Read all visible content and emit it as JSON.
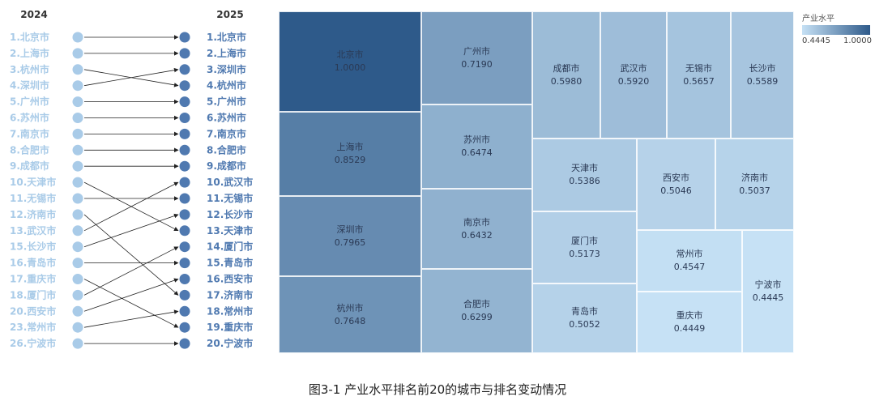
{
  "chart_data": [
    {
      "type": "slope",
      "left_label": "2024",
      "right_label": "2025",
      "left_items": [
        "1.北京市",
        "2.上海市",
        "3.杭州市",
        "4.深圳市",
        "5.广州市",
        "6.苏州市",
        "7.南京市",
        "8.合肥市",
        "9.成都市",
        "10.天津市",
        "11.无锡市",
        "12.济南市",
        "13.武汉市",
        "15.长沙市",
        "16.青岛市",
        "17.重庆市",
        "18.厦门市",
        "20.西安市",
        "23.常州市",
        "26.宁波市"
      ],
      "right_items": [
        "1.北京市",
        "2.上海市",
        "3.深圳市",
        "4.杭州市",
        "5.广州市",
        "6.苏州市",
        "7.南京市",
        "8.合肥市",
        "9.成都市",
        "10.武汉市",
        "11.无锡市",
        "12.长沙市",
        "13.天津市",
        "14.厦门市",
        "15.青岛市",
        "16.西安市",
        "17.济南市",
        "18.常州市",
        "19.重庆市",
        "20.宁波市"
      ],
      "links": [
        [
          0,
          0
        ],
        [
          1,
          1
        ],
        [
          2,
          3
        ],
        [
          3,
          2
        ],
        [
          4,
          4
        ],
        [
          5,
          5
        ],
        [
          6,
          6
        ],
        [
          7,
          7
        ],
        [
          8,
          8
        ],
        [
          9,
          12
        ],
        [
          10,
          10
        ],
        [
          11,
          16
        ],
        [
          12,
          9
        ],
        [
          13,
          11
        ],
        [
          14,
          14
        ],
        [
          15,
          18
        ],
        [
          16,
          13
        ],
        [
          17,
          15
        ],
        [
          18,
          17
        ],
        [
          19,
          19
        ]
      ],
      "colors": {
        "left": "#a9cbe8",
        "right": "#4f79b0",
        "line": "#222222"
      }
    },
    {
      "type": "treemap",
      "legend_title": "产业水平",
      "legend_min": "0.4445",
      "legend_max": "1.0000",
      "color_range": [
        "#c6e1f5",
        "#2e5a8a"
      ],
      "cells": [
        {
          "name": "北京市",
          "value": "1.0000"
        },
        {
          "name": "上海市",
          "value": "0.8529"
        },
        {
          "name": "深圳市",
          "value": "0.7965"
        },
        {
          "name": "杭州市",
          "value": "0.7648"
        },
        {
          "name": "广州市",
          "value": "0.7190"
        },
        {
          "name": "苏州市",
          "value": "0.6474"
        },
        {
          "name": "南京市",
          "value": "0.6432"
        },
        {
          "name": "合肥市",
          "value": "0.6299"
        },
        {
          "name": "成都市",
          "value": "0.5980"
        },
        {
          "name": "武汉市",
          "value": "0.5920"
        },
        {
          "name": "无锡市",
          "value": "0.5657"
        },
        {
          "name": "长沙市",
          "value": "0.5589"
        },
        {
          "name": "天津市",
          "value": "0.5386"
        },
        {
          "name": "西安市",
          "value": "0.5046"
        },
        {
          "name": "济南市",
          "value": "0.5037"
        },
        {
          "name": "厦门市",
          "value": "0.5173"
        },
        {
          "name": "常州市",
          "value": "0.4547"
        },
        {
          "name": "宁波市",
          "value": "0.4445"
        },
        {
          "name": "青岛市",
          "value": "0.5052"
        },
        {
          "name": "重庆市",
          "value": "0.4449"
        }
      ]
    }
  ],
  "caption": "图3-1 产业水平排名前20的城市与排名变动情况"
}
